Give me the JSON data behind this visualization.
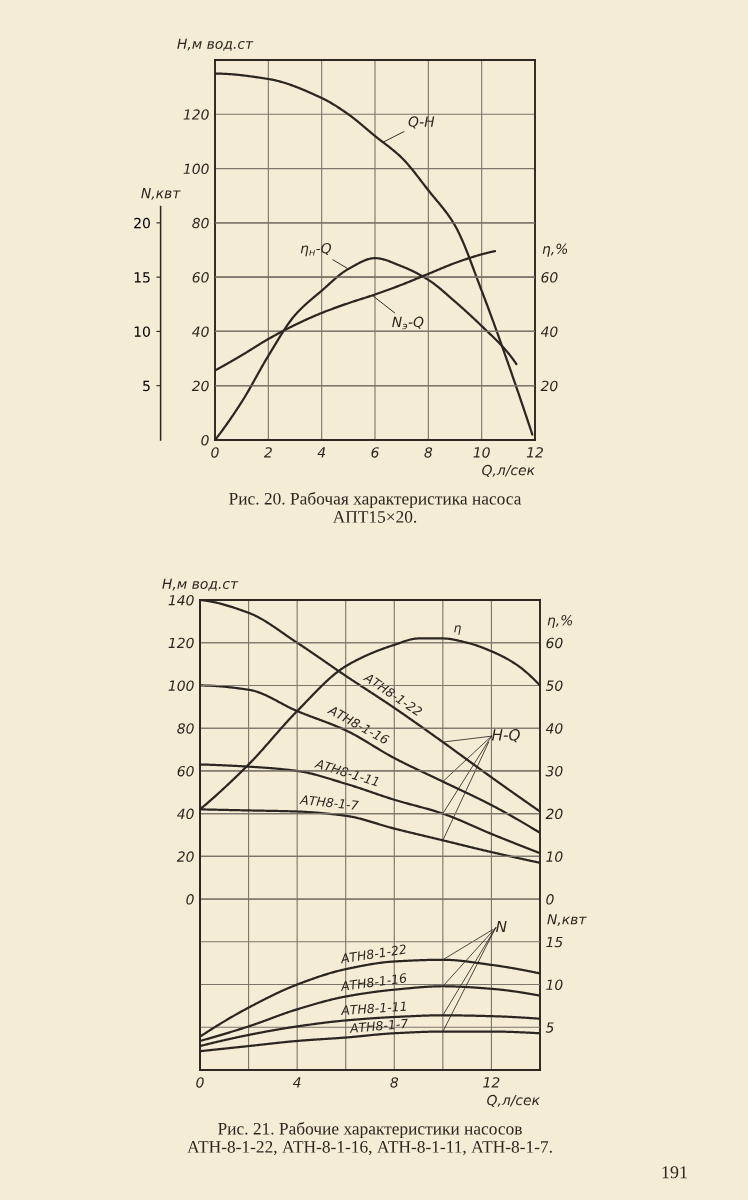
{
  "chart_data": [
    {
      "type": "line",
      "xlabel": "Q,л/сек",
      "ylabel": "H,м вод.ст",
      "y2label": "η,%",
      "y3label": "N,квт",
      "xlim": [
        0,
        12
      ],
      "xticks": [
        0,
        2,
        4,
        6,
        8,
        10,
        12
      ],
      "ylim": [
        0,
        140
      ],
      "yticks": [
        0,
        20,
        40,
        60,
        80,
        100,
        120
      ],
      "y2lim": [
        0,
        140
      ],
      "y2ticks": [
        20,
        40,
        60
      ],
      "y3lim": [
        0,
        35
      ],
      "y3ticks": [
        5,
        10,
        15,
        20
      ],
      "grid": true,
      "series": [
        {
          "name": "Q-H",
          "color": "#2b2621",
          "x": [
            0,
            2,
            4,
            5,
            6,
            7,
            8,
            9,
            10,
            11,
            11.9
          ],
          "values": [
            135,
            133,
            126,
            120,
            112,
            104,
            92,
            79,
            55,
            28,
            2
          ]
        },
        {
          "name": "η$_{н}$-Q",
          "color": "#2b2621",
          "axis": "y2",
          "x": [
            0,
            1,
            2,
            3,
            4,
            5,
            6,
            7,
            8,
            9,
            10,
            11,
            11.3
          ],
          "values": [
            0,
            14,
            31,
            46,
            55,
            63,
            67,
            64,
            59,
            51,
            42,
            32,
            28
          ]
        },
        {
          "name": "N$_{э}$-Q",
          "color": "#2b2621",
          "axis": "y3",
          "x": [
            0,
            1,
            2,
            3,
            4,
            5,
            6,
            7,
            8,
            9,
            10,
            10.5
          ],
          "values": [
            6.4,
            7.8,
            9.3,
            10.6,
            11.7,
            12.6,
            13.4,
            14.3,
            15.3,
            16.3,
            17.1,
            17.4
          ]
        }
      ],
      "annotations": [
        "Рис. 20. Рабочая характеристика насоса\nАПТ15×20."
      ]
    },
    {
      "type": "line",
      "xlabel": "Q,л/сек",
      "ylabel": "H,м вод.ст",
      "y2label": "η,%",
      "y3label": "N,квт",
      "xlim": [
        0,
        14
      ],
      "xticks": [
        0,
        {
          "value": 2,
          "label": null
        },
        4,
        {
          "value": 6,
          "label": null
        },
        8,
        {
          "value": 10,
          "label": null
        },
        12,
        {
          "value": 14,
          "label": null
        }
      ],
      "ylim": [
        -80,
        140
      ],
      "yticks": [
        0,
        20,
        40,
        60,
        80,
        100,
        120,
        140
      ],
      "y2lim": [
        -40,
        70
      ],
      "y2ticks": [
        0,
        10,
        20,
        30,
        40,
        50,
        60
      ],
      "y3lim": [
        0,
        55
      ],
      "y3ticks": [
        5,
        10,
        15
      ],
      "grid": true,
      "series": [
        {
          "name": "АТН8-1-22",
          "color": "#2b2621",
          "x": [
            0,
            2,
            4,
            6,
            8,
            10,
            12,
            14
          ],
          "values": [
            140,
            134,
            120,
            104.5,
            89.5,
            73.5,
            57,
            41
          ]
        },
        {
          "name": "АТН8-1-16",
          "color": "#2b2621",
          "x": [
            0,
            2,
            4,
            6,
            8,
            10,
            12,
            14
          ],
          "values": [
            100,
            98,
            88,
            79,
            66,
            55,
            44,
            31
          ]
        },
        {
          "name": "АТН8-1-11",
          "color": "#2b2621",
          "x": [
            0,
            2,
            4,
            6,
            8,
            10,
            12,
            14
          ],
          "values": [
            63,
            62,
            60,
            54,
            46.5,
            40,
            30.5,
            21.5
          ]
        },
        {
          "name": "АТН8-1-7",
          "color": "#2b2621",
          "x": [
            0,
            2,
            4,
            6,
            8,
            10,
            12,
            14
          ],
          "values": [
            42,
            41.5,
            41,
            39,
            33,
            27.5,
            22,
            17
          ]
        },
        {
          "name": "η",
          "color": "#2b2621",
          "axis": "y2",
          "x": [
            0,
            2,
            4,
            6,
            8,
            9,
            10,
            11,
            12,
            13,
            14
          ],
          "values": [
            21,
            31.5,
            44,
            54.5,
            59.5,
            61,
            61,
            60,
            58,
            55,
            50
          ]
        },
        {
          "name": "АТН8-1-22",
          "color": "#2b2621",
          "axis": "y3",
          "x": [
            0,
            2,
            4,
            6,
            8,
            10,
            12,
            14
          ],
          "values": [
            3.9,
            7.3,
            10,
            11.8,
            12.7,
            12.9,
            12.3,
            11.3
          ]
        },
        {
          "name": "АТН8-1-16",
          "color": "#2b2621",
          "axis": "y3",
          "x": [
            0,
            2,
            4,
            6,
            8,
            10,
            12,
            14
          ],
          "values": [
            3.4,
            5.1,
            7.1,
            8.6,
            9.4,
            9.8,
            9.5,
            8.7
          ]
        },
        {
          "name": "АТН8-1-11",
          "color": "#2b2621",
          "axis": "y3",
          "x": [
            0,
            2,
            4,
            6,
            8,
            10,
            12,
            14
          ],
          "values": [
            2.8,
            4.1,
            5.1,
            5.8,
            6.2,
            6.4,
            6.3,
            6.0
          ]
        },
        {
          "name": "АТН8-1-7",
          "color": "#2b2621",
          "axis": "y3",
          "x": [
            0,
            2,
            4,
            6,
            8,
            10,
            12,
            14
          ],
          "values": [
            2.2,
            2.8,
            3.4,
            3.8,
            4.3,
            4.5,
            4.5,
            4.3
          ]
        }
      ],
      "annotations": [
        "Рис. 21. Рабочие характеристики насосов\nАТН-8-1-22, АТН-8-1-16, АТН-8-1-11, АТН-8-1-7.",
        {
          "text": "H-Q",
          "x": 10,
          "y": 27.5
        },
        {
          "text": "N",
          "x": 10,
          "y": -28.4
        },
        "191"
      ]
    }
  ]
}
